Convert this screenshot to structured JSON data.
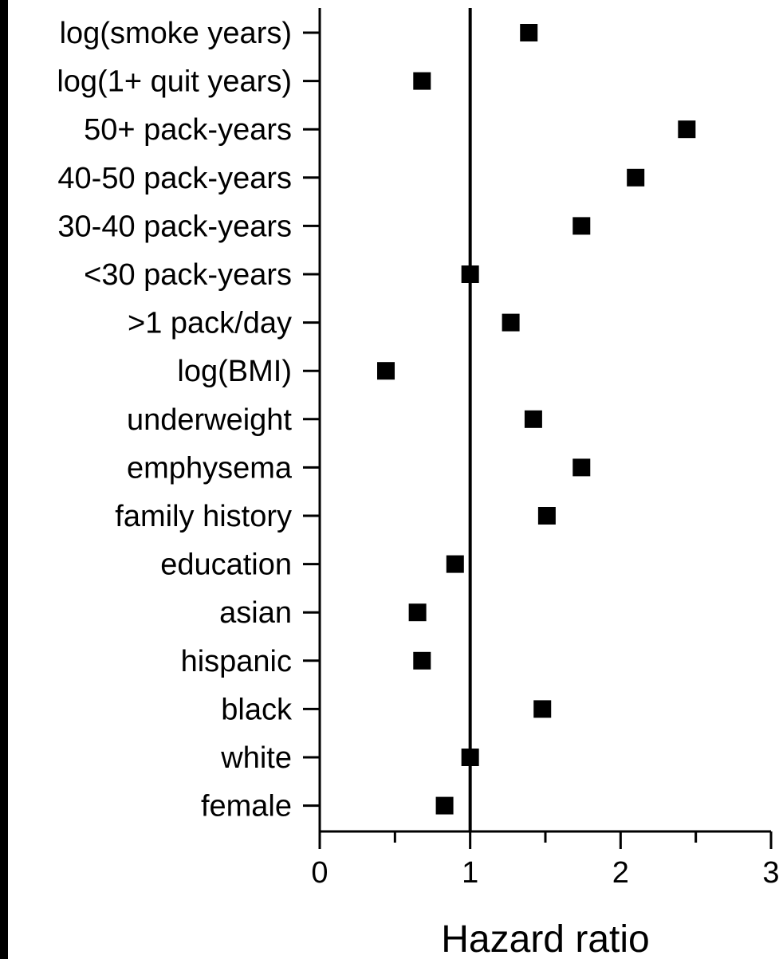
{
  "chart_data": {
    "type": "scatter",
    "title": "",
    "xlabel": "Hazard ratio",
    "ylabel": "",
    "xlim": [
      0,
      3
    ],
    "xticks": [
      "0",
      "1",
      "2",
      "3"
    ],
    "reference_line_x": 1,
    "grid": false,
    "marker": "square",
    "marker_color": "#000000",
    "categories": [
      "log(smoke years)",
      "log(1+ quit years)",
      "50+ pack-years",
      "40-50 pack-years",
      "30-40 pack-years",
      "<30 pack-years",
      ">1 pack/day",
      "log(BMI)",
      "underweight",
      "emphysema",
      "family history",
      "education",
      "asian",
      "hispanic",
      "black",
      "white",
      "female"
    ],
    "values": [
      1.39,
      0.68,
      2.44,
      2.1,
      1.74,
      1.0,
      1.27,
      0.44,
      1.42,
      1.74,
      1.51,
      0.9,
      0.65,
      0.68,
      1.48,
      1.0,
      0.83
    ]
  }
}
